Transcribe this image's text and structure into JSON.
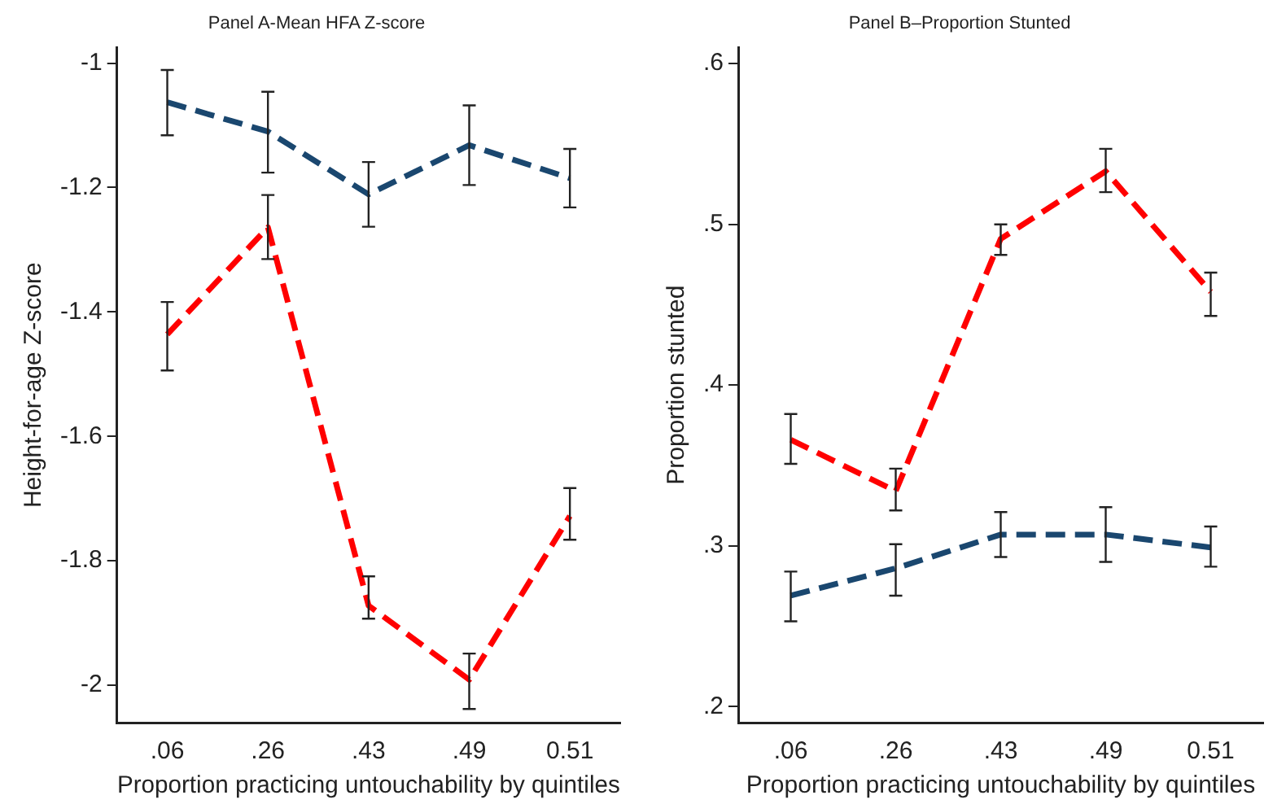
{
  "chart_data": [
    {
      "type": "line",
      "title": "Panel A-Mean HFA Z-score",
      "xlabel": "Proportion practicing untouchability by quintiles",
      "ylabel": "Height-for-age Z-score",
      "categories": [
        ".06",
        ".26",
        ".43",
        ".49",
        "0.51"
      ],
      "ylim": [
        -2.06,
        -0.975
      ],
      "yticks": [
        -2,
        -1.8,
        -1.6,
        -1.4,
        -1.2,
        -1
      ],
      "grid": false,
      "marker": "none",
      "series": [
        {
          "color": "#1a476f",
          "line_style": "dashed",
          "values": [
            -1.063,
            -1.11,
            -1.211,
            -1.132,
            -1.185
          ],
          "errors": [
            [
              -1.116,
              -1.011
            ],
            [
              -1.176,
              -1.046
            ],
            [
              -1.263,
              -1.159
            ],
            [
              -1.196,
              -1.068
            ],
            [
              -1.232,
              -1.138
            ]
          ]
        },
        {
          "color": "#ff0000",
          "line_style": "dashed",
          "values": [
            -1.436,
            -1.264,
            -1.872,
            -1.991,
            -1.728
          ],
          "errors": [
            [
              -1.494,
              -1.384
            ],
            [
              -1.315,
              -1.212
            ],
            [
              -1.893,
              -1.825
            ],
            [
              -2.038,
              -1.949
            ],
            [
              -1.766,
              -1.683
            ]
          ]
        }
      ]
    },
    {
      "type": "line",
      "title": "Panel B–Proportion Stunted",
      "xlabel": "Proportion practicing untouchability by quintiles",
      "ylabel": "Proportion stunted",
      "categories": [
        ".06",
        ".26",
        ".43",
        ".49",
        "0.51"
      ],
      "ylim": [
        0.19,
        0.61
      ],
      "yticks": [
        {
          "value": 0.2,
          "label": ".2"
        },
        {
          "value": 0.3,
          "label": ".3"
        },
        {
          "value": 0.4,
          "label": ".4"
        },
        {
          "value": 0.5,
          "label": ".5"
        },
        {
          "value": 0.6,
          "label": ".6"
        }
      ],
      "grid": false,
      "marker": "none",
      "series": [
        {
          "color": "#1a476f",
          "line_style": "dashed",
          "values": [
            0.269,
            0.286,
            0.307,
            0.307,
            0.299
          ],
          "errors": [
            [
              0.253,
              0.284
            ],
            [
              0.269,
              0.301
            ],
            [
              0.293,
              0.321
            ],
            [
              0.29,
              0.324
            ],
            [
              0.287,
              0.312
            ]
          ]
        },
        {
          "color": "#ff0000",
          "line_style": "dashed",
          "values": [
            0.366,
            0.334,
            0.491,
            0.533,
            0.458
          ],
          "errors": [
            [
              0.351,
              0.382
            ],
            [
              0.322,
              0.348
            ],
            [
              0.481,
              0.5
            ],
            [
              0.52,
              0.547
            ],
            [
              0.443,
              0.47
            ]
          ]
        }
      ]
    }
  ]
}
